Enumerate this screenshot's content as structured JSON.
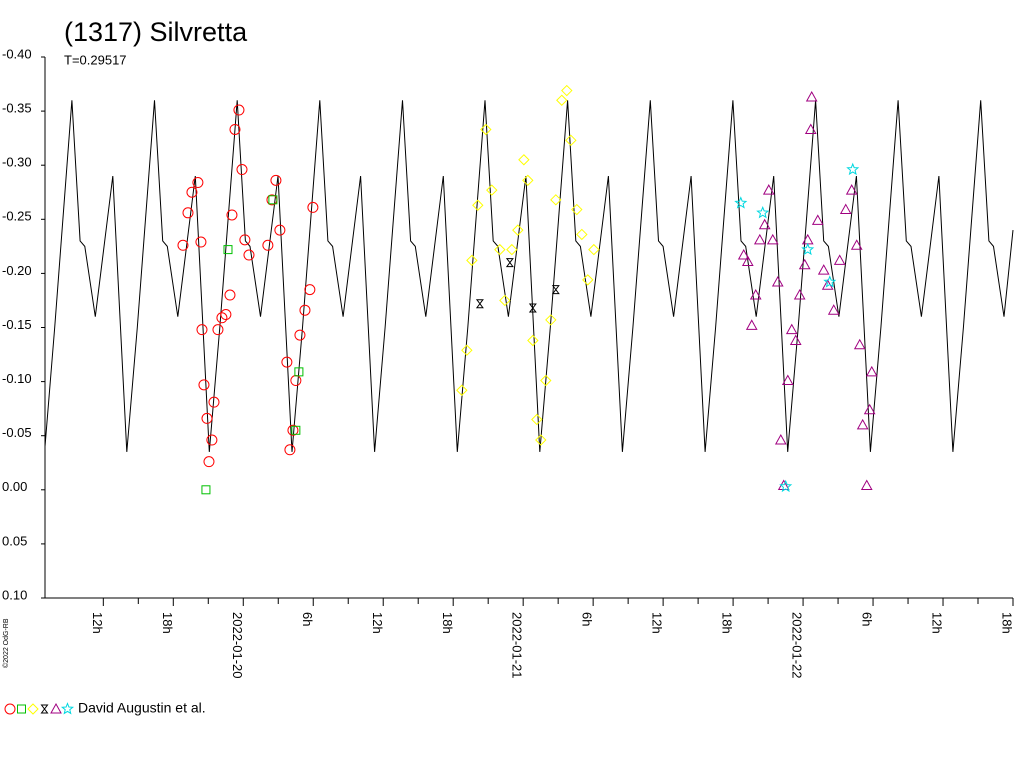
{
  "chart_data": {
    "type": "lightcurve",
    "title": "(1317) Silvretta",
    "subtitle": "T=0.29517",
    "credit": "©2022 OdG-RB",
    "legend_label": "David Augustin et al.",
    "xlim": [
      7,
      90
    ],
    "ylim": [
      -0.4,
      0.1
    ],
    "yticks": [
      {
        "value": -0.4,
        "label": "-0.40"
      },
      -0.35,
      {
        "value": -0.3,
        "label": "-0.30"
      },
      -0.25,
      {
        "value": -0.2,
        "label": "-0.20"
      },
      -0.15,
      {
        "value": -0.1,
        "label": "-0.10"
      },
      -0.05,
      {
        "value": 0,
        "label": "0.00"
      },
      0.05,
      {
        "value": 0.1,
        "label": "0.10"
      }
    ],
    "xticks": [
      {
        "value": 12,
        "label": "12h"
      },
      {
        "value": 18,
        "label": "18h"
      },
      {
        "value": 24,
        "label": "2022-01-20"
      },
      {
        "value": 30,
        "label": "6h"
      },
      {
        "value": 36,
        "label": "12h"
      },
      {
        "value": 42,
        "label": "18h"
      },
      {
        "value": 48,
        "label": "2022-01-21"
      },
      {
        "value": 54,
        "label": "6h"
      },
      {
        "value": 60,
        "label": "12h"
      },
      {
        "value": 66,
        "label": "18h"
      },
      {
        "value": 72,
        "label": "2022-01-22"
      },
      {
        "value": 78,
        "label": "6h"
      },
      {
        "value": 84,
        "label": "12h"
      },
      {
        "value": 90,
        "label": "18h"
      }
    ],
    "series": [
      {
        "marker": "line",
        "color": "#000000",
        "x": [
          7.0,
          7.83,
          9.31,
          10.01,
          10.41,
          11.31,
          12.81,
          14.01,
          14.91,
          16.39,
          17.09,
          17.49,
          18.39,
          19.89,
          21.09,
          21.99,
          23.48,
          24.18,
          24.58,
          25.48,
          26.98,
          28.18,
          29.08,
          30.56,
          31.26,
          31.66,
          32.56,
          34.06,
          35.26,
          36.16,
          37.65,
          38.35,
          38.75,
          39.65,
          41.15,
          42.35,
          43.25,
          44.73,
          45.43,
          45.83,
          46.73,
          48.23,
          49.43,
          50.33,
          51.81,
          52.51,
          52.91,
          53.81,
          55.31,
          56.51,
          57.41,
          58.9,
          59.6,
          60.0,
          60.9,
          62.4,
          63.6,
          64.5,
          65.98,
          66.68,
          67.08,
          67.98,
          69.48,
          70.68,
          71.58,
          73.07,
          73.77,
          74.17,
          75.07,
          76.57,
          77.77,
          78.67,
          80.15,
          80.85,
          81.25,
          82.15,
          83.65,
          84.85,
          85.75,
          87.23,
          87.93,
          88.33,
          89.23,
          90.0
        ],
        "values": [
          -0.04,
          -0.15,
          -0.36,
          -0.23,
          -0.225,
          -0.16,
          -0.29,
          -0.035,
          -0.15,
          -0.36,
          -0.23,
          -0.225,
          -0.16,
          -0.29,
          -0.035,
          -0.15,
          -0.36,
          -0.23,
          -0.225,
          -0.16,
          -0.29,
          -0.035,
          -0.15,
          -0.36,
          -0.23,
          -0.225,
          -0.16,
          -0.29,
          -0.035,
          -0.15,
          -0.36,
          -0.23,
          -0.225,
          -0.16,
          -0.29,
          -0.035,
          -0.15,
          -0.36,
          -0.23,
          -0.225,
          -0.16,
          -0.29,
          -0.035,
          -0.15,
          -0.36,
          -0.23,
          -0.225,
          -0.16,
          -0.29,
          -0.035,
          -0.15,
          -0.36,
          -0.23,
          -0.225,
          -0.16,
          -0.29,
          -0.035,
          -0.15,
          -0.36,
          -0.23,
          -0.225,
          -0.16,
          -0.29,
          -0.035,
          -0.15,
          -0.36,
          -0.23,
          -0.225,
          -0.16,
          -0.29,
          -0.035,
          -0.15,
          -0.36,
          -0.23,
          -0.225,
          -0.16,
          -0.29,
          -0.035,
          -0.15,
          -0.36,
          -0.23,
          -0.225,
          -0.16,
          -0.24
        ]
      },
      {
        "marker": "circle",
        "color": "#ff0000",
        "x": [
          18.83,
          19.26,
          19.6,
          20.11,
          20.37,
          20.46,
          20.63,
          20.89,
          21.06,
          21.31,
          21.49,
          21.83,
          22.17,
          22.51,
          22.86,
          23.03,
          23.29,
          23.63,
          23.89,
          24.14,
          24.49,
          26.11,
          26.46,
          26.8,
          27.14,
          27.74,
          28.0,
          28.26,
          28.51,
          28.86,
          29.29,
          29.71,
          29.97
        ],
        "values": [
          -0.226,
          -0.256,
          -0.275,
          -0.284,
          -0.229,
          -0.148,
          -0.097,
          -0.066,
          -0.026,
          -0.046,
          -0.081,
          -0.148,
          -0.159,
          -0.162,
          -0.18,
          -0.254,
          -0.333,
          -0.351,
          -0.296,
          -0.231,
          -0.217,
          -0.226,
          -0.268,
          -0.286,
          -0.24,
          -0.118,
          -0.037,
          -0.055,
          -0.101,
          -0.143,
          -0.166,
          -0.185,
          -0.261
        ]
      },
      {
        "marker": "square",
        "color": "#00c000",
        "x": [
          20.8,
          22.69,
          26.54,
          28.51,
          28.77
        ],
        "values": [
          0.0,
          -0.222,
          -0.268,
          -0.055,
          -0.109
        ]
      },
      {
        "marker": "diamond",
        "color": "#ffff00",
        "x": [
          42.74,
          43.17,
          43.6,
          44.11,
          44.8,
          45.31,
          46.0,
          46.43,
          47.03,
          47.54,
          48.06,
          48.4,
          48.83,
          49.17,
          49.51,
          49.94,
          50.37,
          50.8,
          51.31,
          51.74,
          52.09,
          52.6,
          53.03,
          53.54,
          54.06
        ],
        "values": [
          -0.092,
          -0.129,
          -0.212,
          -0.263,
          -0.333,
          -0.277,
          -0.222,
          -0.175,
          -0.222,
          -0.24,
          -0.305,
          -0.286,
          -0.138,
          -0.065,
          -0.046,
          -0.101,
          -0.157,
          -0.268,
          -0.36,
          -0.369,
          -0.323,
          -0.259,
          -0.236,
          -0.194,
          -0.222
        ]
      },
      {
        "marker": "hourglass",
        "color": "#000000",
        "x": [
          44.29,
          46.86,
          48.83,
          50.8
        ],
        "values": [
          -0.172,
          -0.21,
          -0.168,
          -0.185
        ]
      },
      {
        "marker": "triangle",
        "color": "#a00080",
        "x": [
          66.91,
          67.26,
          67.6,
          67.94,
          68.29,
          68.71,
          69.06,
          69.4,
          69.83,
          70.09,
          70.34,
          70.69,
          71.03,
          71.37,
          71.71,
          72.14,
          72.4,
          72.66,
          72.74,
          73.26,
          73.77,
          74.11,
          74.63,
          75.14,
          75.66,
          76.17,
          76.6,
          76.86,
          77.11,
          77.46,
          77.71,
          77.89
        ],
        "values": [
          -0.217,
          -0.211,
          -0.152,
          -0.18,
          -0.231,
          -0.245,
          -0.277,
          -0.231,
          -0.192,
          -0.046,
          -0.004,
          -0.101,
          -0.148,
          -0.138,
          -0.18,
          -0.208,
          -0.231,
          -0.333,
          -0.363,
          -0.249,
          -0.203,
          -0.189,
          -0.166,
          -0.212,
          -0.259,
          -0.277,
          -0.226,
          -0.134,
          -0.06,
          -0.004,
          -0.074,
          -0.109
        ]
      },
      {
        "marker": "star",
        "color": "#00d8e0",
        "x": [
          66.66,
          68.54,
          70.51,
          72.4,
          74.29,
          76.26
        ],
        "values": [
          -0.265,
          -0.256,
          -0.003,
          -0.222,
          -0.192,
          -0.296
        ]
      }
    ]
  }
}
